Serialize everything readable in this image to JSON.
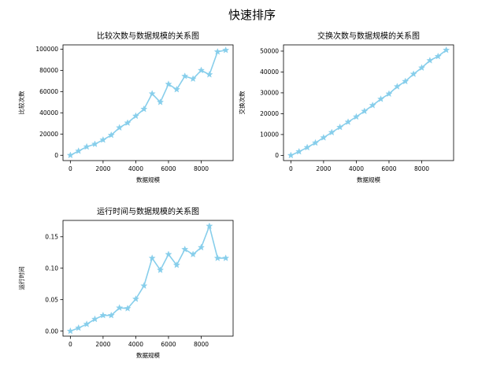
{
  "figure": {
    "suptitle": "快速排序"
  },
  "chart_data": [
    {
      "type": "line",
      "title": "比较次数与数据规模的关系图",
      "xlabel": "数据规模",
      "ylabel": "比较次数",
      "xlim": [
        -450,
        9950
      ],
      "ylim": [
        -5000,
        104000
      ],
      "xticks": [
        0,
        2000,
        4000,
        6000,
        8000
      ],
      "yticks": [
        0,
        20000,
        40000,
        60000,
        80000,
        100000
      ],
      "xticklabels": [
        "0",
        "2000",
        "4000",
        "6000",
        "8000"
      ],
      "yticklabels": [
        "0",
        "20000",
        "40000",
        "60000",
        "80000",
        "100000"
      ],
      "color": "#87ceeb",
      "marker": "star",
      "grid": false,
      "x": [
        0,
        500,
        1000,
        1500,
        2000,
        2500,
        3000,
        3500,
        4000,
        4500,
        5000,
        5500,
        6000,
        6500,
        7000,
        7500,
        8000,
        8500,
        9000,
        9500
      ],
      "y": [
        0,
        4000,
        8000,
        10500,
        14500,
        19000,
        26000,
        30500,
        37000,
        43500,
        58000,
        50000,
        67000,
        62000,
        74500,
        72000,
        80000,
        76000,
        97500,
        99000
      ]
    },
    {
      "type": "line",
      "title": "交换次数与数据规模的关系图",
      "xlabel": "数据规模",
      "ylabel": "交换次数",
      "xlim": [
        -450,
        9950
      ],
      "ylim": [
        -2500,
        53000
      ],
      "xticks": [
        0,
        2000,
        4000,
        6000,
        8000
      ],
      "yticks": [
        0,
        10000,
        20000,
        30000,
        40000,
        50000
      ],
      "xticklabels": [
        "0",
        "2000",
        "4000",
        "6000",
        "8000"
      ],
      "yticklabels": [
        "0",
        "10000",
        "20000",
        "30000",
        "40000",
        "50000"
      ],
      "color": "#87ceeb",
      "marker": "star",
      "grid": false,
      "x": [
        0,
        500,
        1000,
        1500,
        2000,
        2500,
        3000,
        3500,
        4000,
        4500,
        5000,
        5500,
        6000,
        6500,
        7000,
        7500,
        8000,
        8500,
        9000,
        9500
      ],
      "y": [
        0,
        1800,
        3800,
        6000,
        8500,
        11000,
        13500,
        16000,
        18500,
        21200,
        24000,
        27000,
        29500,
        33000,
        35500,
        39000,
        42000,
        45500,
        47500,
        50500
      ]
    },
    {
      "type": "line",
      "title": "运行时间与数据规模的关系图",
      "xlabel": "数据规模",
      "ylabel": "运行时间",
      "xlim": [
        -450,
        9950
      ],
      "ylim": [
        -0.008,
        0.176
      ],
      "xticks": [
        0,
        2000,
        4000,
        6000,
        8000
      ],
      "yticks": [
        0.0,
        0.05,
        0.1,
        0.15
      ],
      "xticklabels": [
        "0",
        "2000",
        "4000",
        "6000",
        "8000"
      ],
      "yticklabels": [
        "0.00",
        "0.05",
        "0.10",
        "0.15"
      ],
      "color": "#87ceeb",
      "marker": "star",
      "grid": false,
      "x": [
        0,
        500,
        1000,
        1500,
        2000,
        2500,
        3000,
        3500,
        4000,
        4500,
        5000,
        5500,
        6000,
        6500,
        7000,
        7500,
        8000,
        8500,
        9000,
        9500
      ],
      "y": [
        0.0,
        0.005,
        0.011,
        0.019,
        0.025,
        0.025,
        0.037,
        0.036,
        0.051,
        0.072,
        0.116,
        0.097,
        0.122,
        0.105,
        0.13,
        0.122,
        0.133,
        0.167,
        0.116,
        0.116
      ]
    }
  ]
}
